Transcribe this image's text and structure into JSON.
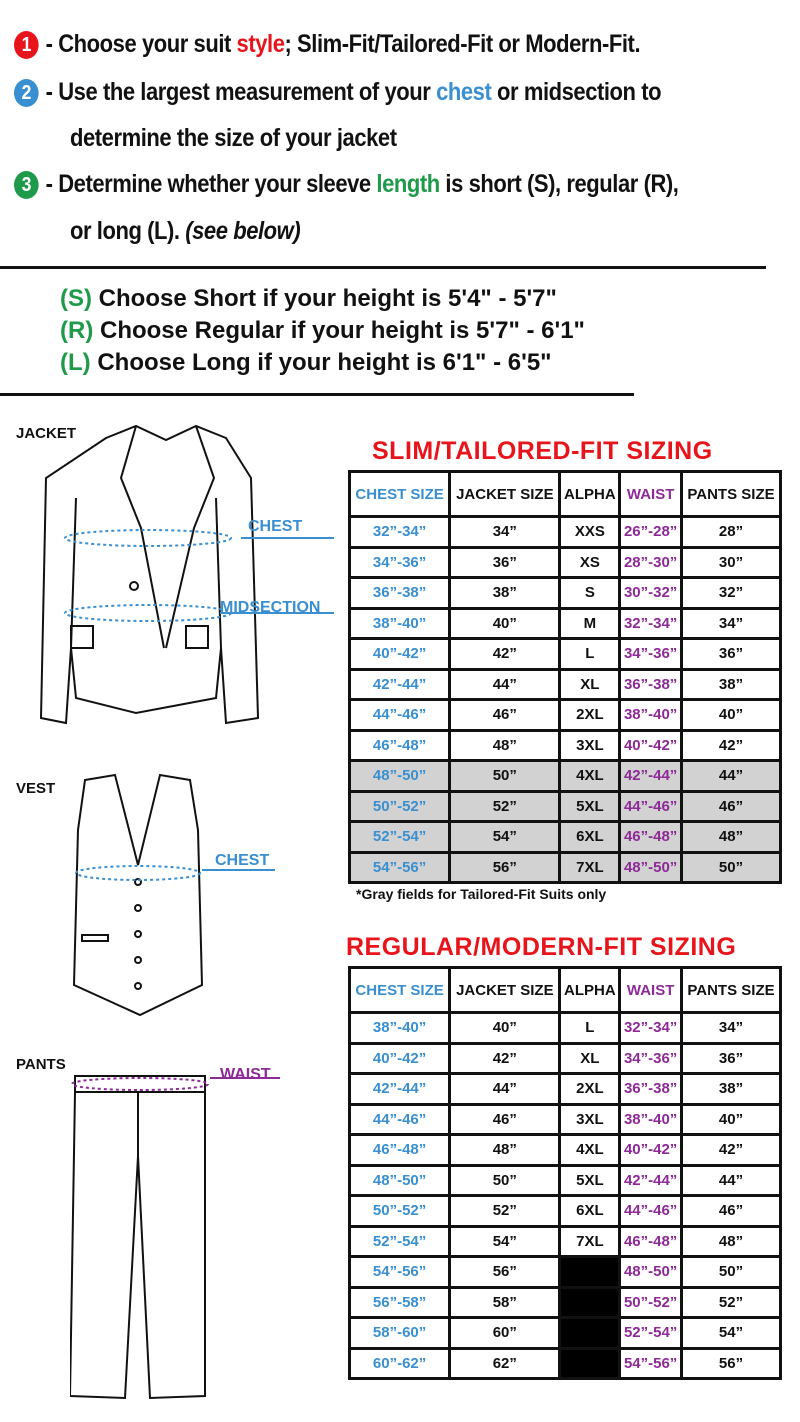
{
  "steps": [
    {
      "num": "1",
      "color": "#e8141b",
      "pre": "- Choose your suit ",
      "hl": "style",
      "post": "; Slim-Fit/Tailored-Fit or Modern-Fit."
    },
    {
      "num": "2",
      "color": "#3a8fd0",
      "pre": "- Use the largest measurement of your ",
      "hl": "chest",
      "post": " or midsection to",
      "line2": "determine the size of your jacket"
    },
    {
      "num": "3",
      "color": "#1f9a4a",
      "pre": "- Determine whether your sleeve ",
      "hl": "length",
      "post": " is short (S), regular (R),",
      "line2": "or long (L). ",
      "line2_italic": "(see below)"
    }
  ],
  "heights": [
    {
      "code": "(S)",
      "text": " Choose Short if your height is 5'4\" - 5'7\""
    },
    {
      "code": "(R)",
      "text": " Choose Regular if your height is  5'7\" - 6'1\""
    },
    {
      "code": "(L)",
      "text": " Choose Long if your height is  6'1\" - 6'5\""
    }
  ],
  "garments": {
    "jacket": "JACKET",
    "vest": "VEST",
    "pants": "PANTS",
    "chest": "CHEST",
    "midsection": "MIDSECTION",
    "vest_chest": "CHEST",
    "waist": "WAIST"
  },
  "headers": [
    "CHEST SIZE",
    "JACKET SIZE",
    "ALPHA",
    "WAIST",
    "PANTS SIZE"
  ],
  "slim": {
    "title": "SLIM/TAILORED-FIT SIZING",
    "note": "*Gray fields for Tailored-Fit Suits only",
    "rows": [
      [
        "32”-34”",
        "34”",
        "XXS",
        "26”-28”",
        "28”"
      ],
      [
        "34”-36”",
        "36”",
        "XS",
        "28”-30”",
        "30”"
      ],
      [
        "36”-38”",
        "38”",
        "S",
        "30”-32”",
        "32”"
      ],
      [
        "38”-40”",
        "40”",
        "M",
        "32”-34”",
        "34”"
      ],
      [
        "40”-42”",
        "42”",
        "L",
        "34”-36”",
        "36”"
      ],
      [
        "42”-44”",
        "44”",
        "XL",
        "36”-38”",
        "38”"
      ],
      [
        "44”-46”",
        "46”",
        "2XL",
        "38”-40”",
        "40”"
      ],
      [
        "46”-48”",
        "48”",
        "3XL",
        "40”-42”",
        "42”"
      ],
      [
        "48”-50”",
        "50”",
        "4XL",
        "42”-44”",
        "44”"
      ],
      [
        "50”-52”",
        "52”",
        "5XL",
        "44”-46”",
        "46”"
      ],
      [
        "52”-54”",
        "54”",
        "6XL",
        "46”-48”",
        "48”"
      ],
      [
        "54”-56”",
        "56”",
        "7XL",
        "48”-50”",
        "50”"
      ]
    ],
    "gray_from": 8
  },
  "regular": {
    "title": "REGULAR/MODERN-FIT SIZING",
    "rows": [
      [
        "38”-40”",
        "40”",
        "L",
        "32”-34”",
        "34”"
      ],
      [
        "40”-42”",
        "42”",
        "XL",
        "34”-36”",
        "36”"
      ],
      [
        "42”-44”",
        "44”",
        "2XL",
        "36”-38”",
        "38”"
      ],
      [
        "44”-46”",
        "46”",
        "3XL",
        "38”-40”",
        "40”"
      ],
      [
        "46”-48”",
        "48”",
        "4XL",
        "40”-42”",
        "42”"
      ],
      [
        "48”-50”",
        "50”",
        "5XL",
        "42”-44”",
        "44”"
      ],
      [
        "50”-52”",
        "52”",
        "6XL",
        "44”-46”",
        "46”"
      ],
      [
        "52”-54”",
        "54”",
        "7XL",
        "46”-48”",
        "48”"
      ],
      [
        "54”-56”",
        "56”",
        "",
        "48”-50”",
        "50”"
      ],
      [
        "56”-58”",
        "58”",
        "",
        "50”-52”",
        "52”"
      ],
      [
        "58”-60”",
        "60”",
        "",
        "52”-54”",
        "54”"
      ],
      [
        "60”-62”",
        "62”",
        "",
        "54”-56”",
        "56”"
      ]
    ]
  }
}
